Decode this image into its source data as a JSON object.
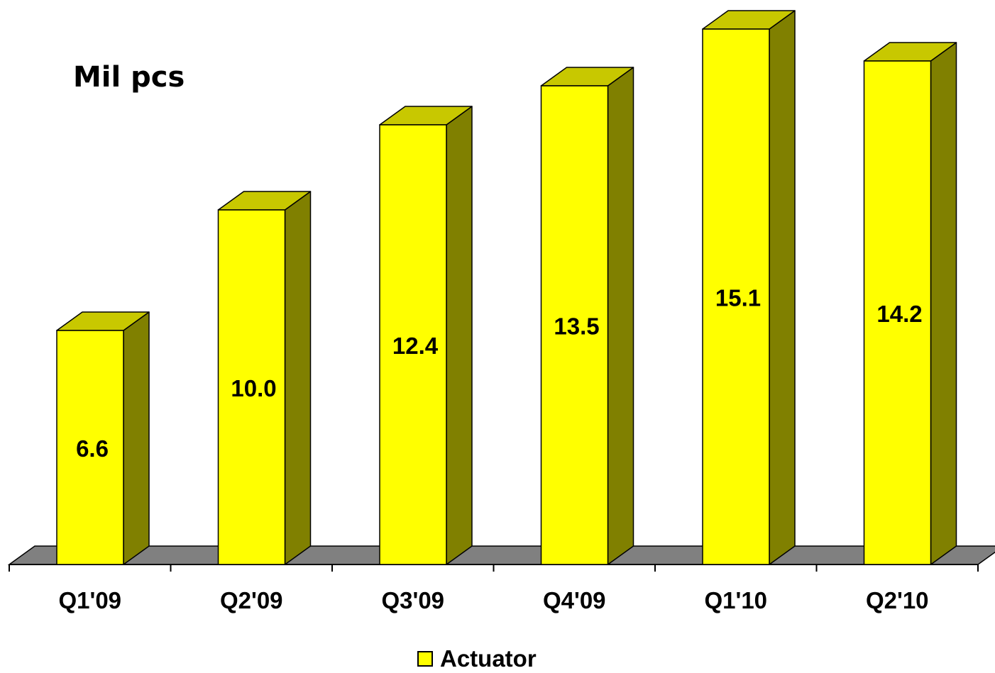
{
  "chart_data": {
    "type": "bar",
    "style": "3d-column",
    "title": "",
    "unit_label": "Mil pcs",
    "xlabel": "",
    "ylabel": "",
    "categories": [
      "Q1'09",
      "Q2'09",
      "Q3'09",
      "Q4'09",
      "Q1'10",
      "Q2'10"
    ],
    "series": [
      {
        "name": "Actuator",
        "values": [
          6.6,
          10.0,
          12.4,
          13.5,
          15.1,
          14.2
        ],
        "labels": [
          "6.6",
          "10.0",
          "12.4",
          "13.5",
          "15.1",
          "14.2"
        ]
      }
    ],
    "ylim": [
      0,
      15.1
    ],
    "grid": false,
    "legend_position": "bottom-center",
    "colors": {
      "bar_front": "#FFFF00",
      "bar_top": "#C8C800",
      "bar_side": "#808000",
      "floor": "#808080",
      "outline": "#000000"
    }
  }
}
